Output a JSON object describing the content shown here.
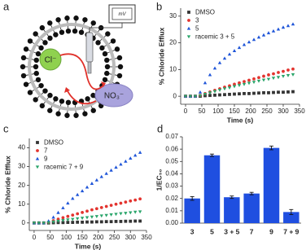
{
  "diagram": {
    "panel_label": "a",
    "inner_ion": "Cl⁻",
    "outer_ion": "NO₃⁻",
    "meter": "mV"
  },
  "chart_data": [
    {
      "type": "scatter",
      "panel_label": "b",
      "y_label": "% Chloride Efflux",
      "x_label": "Time (s)",
      "x": [
        0,
        15,
        30,
        45,
        60,
        75,
        90,
        105,
        120,
        135,
        150,
        165,
        180,
        195,
        210,
        225,
        240,
        255,
        270,
        285,
        300,
        315,
        330
      ],
      "xlim": [
        -15,
        350
      ],
      "xticks": [
        0,
        50,
        100,
        150,
        200,
        250,
        300,
        350
      ],
      "ylim": [
        -3,
        33
      ],
      "yticks": [
        0,
        10,
        20,
        30
      ],
      "series": [
        {
          "name": "DMSO",
          "color": "#333333",
          "marker": "square",
          "values": [
            0,
            0,
            0,
            0,
            0.2,
            0.3,
            0.4,
            0.5,
            0.6,
            0.7,
            0.8,
            0.9,
            1,
            1,
            1.1,
            1.2,
            1.3,
            1.3,
            1.4,
            1.5,
            1.5,
            1.6,
            1.7
          ]
        },
        {
          "name": "3",
          "color": "#e3342f",
          "marker": "circle",
          "values": [
            0,
            0,
            0,
            0.3,
            1,
            1.6,
            2.2,
            2.8,
            3.4,
            3.9,
            4.5,
            5,
            5.5,
            6,
            6.5,
            7,
            7.5,
            8,
            8.4,
            8.9,
            9.3,
            9.8,
            10.2
          ]
        },
        {
          "name": "5",
          "color": "#1f55d8",
          "marker": "triangle",
          "values": [
            0,
            0,
            0,
            1.5,
            5,
            8,
            10.5,
            12.5,
            14.2,
            15.7,
            17,
            18.2,
            19.3,
            20.3,
            21.2,
            22.1,
            22.9,
            23.7,
            24.4,
            25.1,
            25.8,
            26.4,
            27
          ]
        },
        {
          "name": "racemic 3 + 5",
          "color": "#2aa56a",
          "marker": "triangle-down",
          "values": [
            0,
            0,
            0,
            0.2,
            0.8,
            1.3,
            1.8,
            2.3,
            2.8,
            3.2,
            3.7,
            4.1,
            4.5,
            4.9,
            5.3,
            5.7,
            6.1,
            6.4,
            6.8,
            7.1,
            7.5,
            7.8,
            8.1
          ]
        }
      ]
    },
    {
      "type": "scatter",
      "panel_label": "c",
      "y_label": "% Chloride Efflux",
      "x_label": "Time (s)",
      "x": [
        0,
        15,
        30,
        45,
        60,
        75,
        90,
        105,
        120,
        135,
        150,
        165,
        180,
        195,
        210,
        225,
        240,
        255,
        270,
        285,
        300,
        315,
        330
      ],
      "xlim": [
        -15,
        350
      ],
      "xticks": [
        0,
        50,
        100,
        150,
        200,
        250,
        300,
        350
      ],
      "ylim": [
        -4,
        45
      ],
      "yticks": [
        0,
        10,
        20,
        30,
        40
      ],
      "series": [
        {
          "name": "DMSO",
          "color": "#333333",
          "marker": "square",
          "values": [
            0,
            0,
            0,
            0,
            0.1,
            0.2,
            0.2,
            0.3,
            0.3,
            0.4,
            0.4,
            0.5,
            0.5,
            0.6,
            0.6,
            0.7,
            0.7,
            0.8,
            0.8,
            0.9,
            0.9,
            1,
            1
          ]
        },
        {
          "name": "7",
          "color": "#e3342f",
          "marker": "circle",
          "values": [
            0,
            0,
            0,
            0.4,
            1.2,
            2,
            2.8,
            3.5,
            4.2,
            4.9,
            5.6,
            6.3,
            7,
            7.6,
            8.2,
            8.8,
            9.4,
            10,
            10.5,
            11.1,
            11.7,
            12.2,
            12.8
          ]
        },
        {
          "name": "9",
          "color": "#1f55d8",
          "marker": "triangle",
          "values": [
            0,
            0,
            0,
            1,
            3,
            5.5,
            8,
            10.5,
            13,
            15,
            17,
            19,
            21,
            22.8,
            24.6,
            26.3,
            28,
            29.6,
            31.2,
            32.8,
            34.4,
            36,
            37.5
          ]
        },
        {
          "name": "racemic 7 + 9",
          "color": "#2aa56a",
          "marker": "triangle-down",
          "values": [
            0,
            0,
            0,
            0.2,
            0.6,
            1,
            1.4,
            1.7,
            2,
            2.3,
            2.6,
            2.9,
            3.2,
            3.5,
            3.8,
            4.1,
            4.4,
            4.7,
            5,
            5.2,
            5.5,
            5.8,
            6
          ]
        }
      ]
    },
    {
      "type": "bar",
      "panel_label": "d",
      "y_label": "1/EC₅₀",
      "color": "#1f4fe0",
      "categories": [
        "3",
        "5",
        "3 + 5",
        "7",
        "9",
        "7 + 9"
      ],
      "values": [
        0.02,
        0.055,
        0.021,
        0.024,
        0.061,
        0.009
      ],
      "errors": [
        0.0015,
        0.001,
        0.001,
        0.001,
        0.0015,
        0.002
      ],
      "ylim": [
        0,
        0.07
      ],
      "yticks": [
        {
          "value": 0,
          "label": "0.00"
        },
        0.01,
        0.02,
        0.03,
        0.04,
        0.05,
        0.06,
        0.07
      ]
    }
  ]
}
